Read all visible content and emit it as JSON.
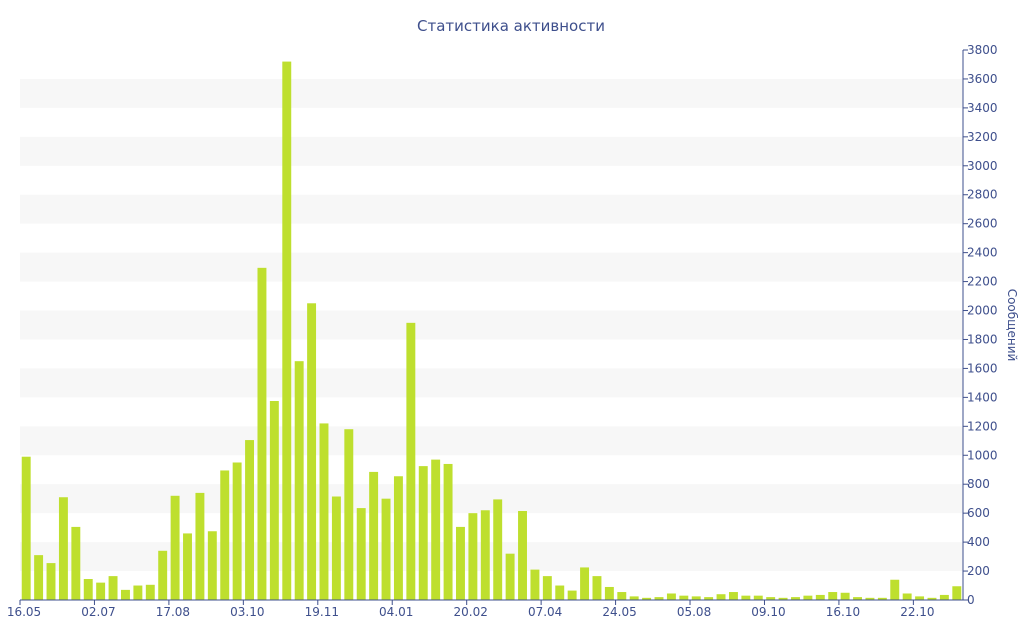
{
  "chart_data": {
    "type": "bar",
    "title": "Статистика активности",
    "ylabel": "Сообщений",
    "xlabel": "",
    "ylim": [
      0,
      3800
    ],
    "y_ticks": [
      0,
      200,
      400,
      600,
      800,
      1000,
      1200,
      1400,
      1600,
      1800,
      2000,
      2200,
      2400,
      2600,
      2800,
      3000,
      3200,
      3400,
      3600,
      3800
    ],
    "y_axis_side": "right",
    "grid": "alternating horizontal bands",
    "legend": "none",
    "x_tick_labels": [
      {
        "index": 0,
        "label": "16.05"
      },
      {
        "index": 6,
        "label": "02.07"
      },
      {
        "index": 12,
        "label": "17.08"
      },
      {
        "index": 18,
        "label": "03.10"
      },
      {
        "index": 24,
        "label": "19.11"
      },
      {
        "index": 30,
        "label": "04.01"
      },
      {
        "index": 36,
        "label": "20.02"
      },
      {
        "index": 42,
        "label": "07.04"
      },
      {
        "index": 48,
        "label": "24.05"
      },
      {
        "index": 54,
        "label": "05.08"
      },
      {
        "index": 60,
        "label": "09.10"
      },
      {
        "index": 66,
        "label": "16.10"
      },
      {
        "index": 72,
        "label": "22.10"
      }
    ],
    "series": [
      {
        "values": [
          990,
          310,
          255,
          710,
          505,
          145,
          120,
          165,
          70,
          100,
          105,
          340,
          720,
          460,
          740,
          475,
          895,
          950,
          1105,
          2295,
          1375,
          3720,
          1650,
          2050,
          1220,
          715,
          1180,
          635,
          885,
          700,
          855,
          1915,
          925,
          970,
          940,
          505,
          600,
          620,
          695,
          320,
          615,
          210,
          165,
          100,
          65,
          225,
          165,
          90,
          55,
          25,
          15,
          20,
          45,
          30,
          25,
          20,
          40,
          55,
          30,
          30,
          20,
          15,
          20,
          30,
          35,
          55,
          50,
          20,
          15,
          15,
          140,
          45,
          25,
          15,
          35,
          95
        ]
      }
    ],
    "colors": {
      "bar": "#bedf2e",
      "band": "#f7f7f7",
      "axis": "#3e4f8c",
      "text": "#3e4f8c"
    }
  }
}
